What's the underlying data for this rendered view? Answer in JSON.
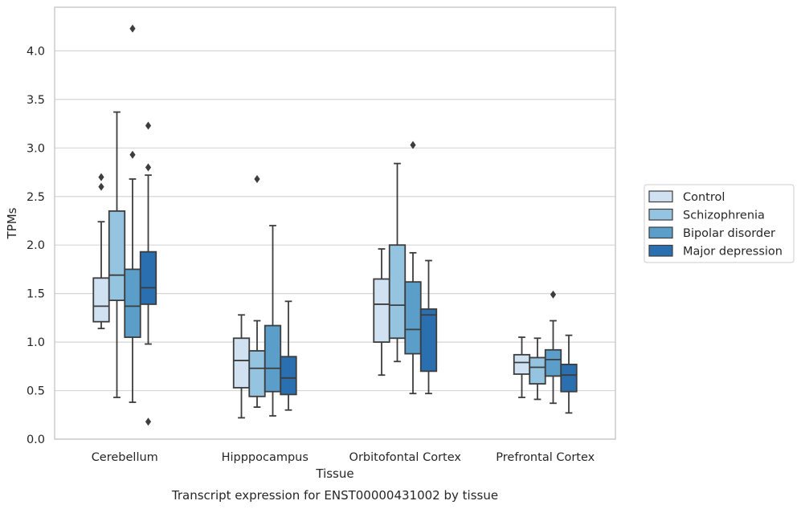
{
  "chart_data": {
    "type": "box",
    "title": "",
    "xlabel": "Tissue",
    "ylabel": "TPMs",
    "caption": "Transcript expression for ENST00000431002 by tissue",
    "ylim": [
      0,
      4.45
    ],
    "yticks": [
      0.0,
      0.5,
      1.0,
      1.5,
      2.0,
      2.5,
      3.0,
      3.5,
      4.0
    ],
    "ytick_labels": [
      "0.0",
      "0.5",
      "1.0",
      "1.5",
      "2.0",
      "2.5",
      "3.0",
      "3.5",
      "4.0"
    ],
    "grid": "horizontal",
    "legend_placement": "right",
    "categories": [
      "Cerebellum",
      "Hipppocampus",
      "Orbitofontal Cortex",
      "Prefrontal Cortex"
    ],
    "series": [
      {
        "name": "Control",
        "color": "#d0e1f2",
        "boxes": [
          {
            "whislo": 1.14,
            "q1": 1.21,
            "med": 1.37,
            "q3": 1.66,
            "whishi": 2.24,
            "fliers": [
              2.6,
              2.7
            ]
          },
          {
            "whislo": 0.22,
            "q1": 0.53,
            "med": 0.81,
            "q3": 1.04,
            "whishi": 1.28,
            "fliers": []
          },
          {
            "whislo": 0.66,
            "q1": 1.0,
            "med": 1.39,
            "q3": 1.65,
            "whishi": 1.96,
            "fliers": []
          },
          {
            "whislo": 0.43,
            "q1": 0.67,
            "med": 0.79,
            "q3": 0.87,
            "whishi": 1.05,
            "fliers": []
          }
        ]
      },
      {
        "name": "Schizophrenia",
        "color": "#94c4df",
        "boxes": [
          {
            "whislo": 0.43,
            "q1": 1.43,
            "med": 1.69,
            "q3": 2.35,
            "whishi": 3.37,
            "fliers": []
          },
          {
            "whislo": 0.33,
            "q1": 0.44,
            "med": 0.73,
            "q3": 0.91,
            "whishi": 1.22,
            "fliers": [
              2.68
            ]
          },
          {
            "whislo": 0.8,
            "q1": 1.04,
            "med": 1.38,
            "q3": 2.0,
            "whishi": 2.84,
            "fliers": []
          },
          {
            "whislo": 0.41,
            "q1": 0.57,
            "med": 0.74,
            "q3": 0.84,
            "whishi": 1.04,
            "fliers": []
          }
        ]
      },
      {
        "name": "Bipolar disorder",
        "color": "#5a9ec9",
        "boxes": [
          {
            "whislo": 0.38,
            "q1": 1.05,
            "med": 1.37,
            "q3": 1.75,
            "whishi": 2.68,
            "fliers": [
              2.93,
              4.23
            ]
          },
          {
            "whislo": 0.24,
            "q1": 0.49,
            "med": 0.73,
            "q3": 1.17,
            "whishi": 2.2,
            "fliers": []
          },
          {
            "whislo": 0.47,
            "q1": 0.88,
            "med": 1.13,
            "q3": 1.62,
            "whishi": 1.92,
            "fliers": [
              3.03
            ]
          },
          {
            "whislo": 0.37,
            "q1": 0.65,
            "med": 0.82,
            "q3": 0.92,
            "whishi": 1.22,
            "fliers": [
              1.49
            ]
          }
        ]
      },
      {
        "name": "Major depression",
        "color": "#2a6fb0",
        "boxes": [
          {
            "whislo": 0.98,
            "q1": 1.39,
            "med": 1.56,
            "q3": 1.93,
            "whishi": 2.72,
            "fliers": [
              0.18,
              2.8,
              3.23
            ]
          },
          {
            "whislo": 0.3,
            "q1": 0.46,
            "med": 0.63,
            "q3": 0.85,
            "whishi": 1.42,
            "fliers": []
          },
          {
            "whislo": 0.47,
            "q1": 0.7,
            "med": 1.28,
            "q3": 1.34,
            "whishi": 1.84,
            "fliers": []
          },
          {
            "whislo": 0.27,
            "q1": 0.49,
            "med": 0.66,
            "q3": 0.77,
            "whishi": 1.07,
            "fliers": []
          }
        ]
      }
    ]
  }
}
